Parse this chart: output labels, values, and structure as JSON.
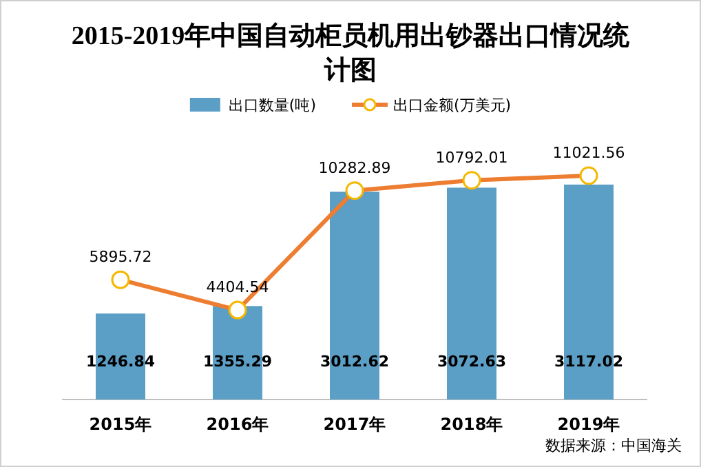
{
  "chart_data": {
    "type": "bar",
    "title": "2015-2019年中国自动柜员机用出钞器出口情况统计图",
    "categories": [
      "2015年",
      "2016年",
      "2017年",
      "2018年",
      "2019年"
    ],
    "series": [
      {
        "name": "出口数量(吨)",
        "color": "#5b9ec6",
        "values": [
          1246.84,
          1355.29,
          3012.62,
          3072.63,
          3117.02
        ]
      },
      {
        "name": "出口金额(万美元)",
        "type": "line",
        "axis": "y2",
        "color": "#ed7d31",
        "values": [
          5895.72,
          4404.54,
          10282.89,
          10792.01,
          11021.56
        ]
      }
    ],
    "marker": "circle",
    "data_labels": true,
    "legend": "top",
    "annotations": [
      "数据来源：中国海关"
    ]
  }
}
